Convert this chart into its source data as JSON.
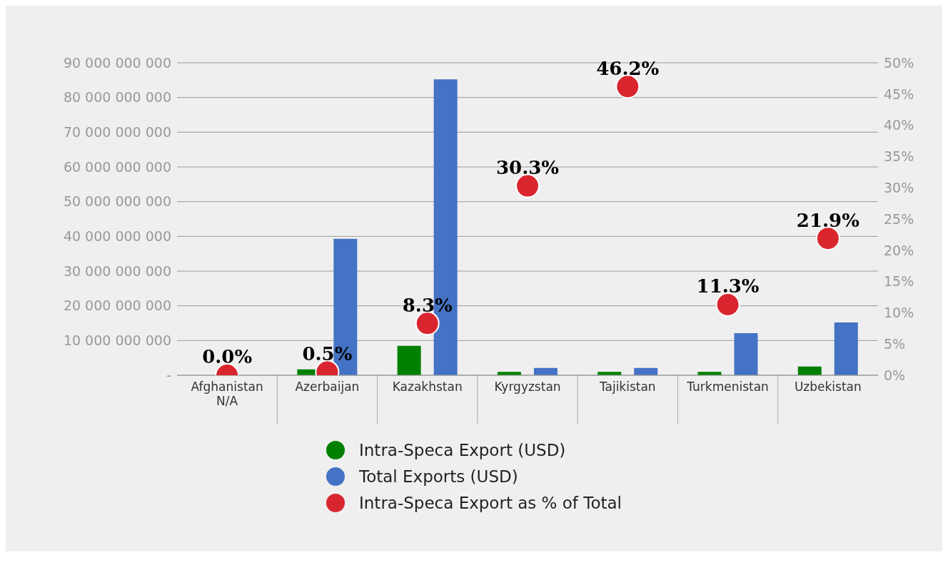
{
  "chart_data": {
    "type": "bar",
    "categories": [
      "Afghanistan\nN/A",
      "Azerbaijan",
      "Kazakhstan",
      "Kyrgyzstan",
      "Tajikistan",
      "Turkmenistan",
      "Uzbekistan"
    ],
    "series": [
      {
        "name": "Intra-Speca Export (USD)",
        "color": "#008000",
        "values": [
          null,
          1700000000,
          8500000000,
          1000000000,
          1000000000,
          1000000000,
          2500000000
        ]
      },
      {
        "name": "Total Exports (USD)",
        "color": "#4472c4",
        "values": [
          null,
          39300000000,
          85200000000,
          2100000000,
          2100000000,
          12100000000,
          15200000000
        ]
      },
      {
        "name": "Intra-Speca Export as % of Total",
        "type": "scatter",
        "axis": "y2",
        "color": "#d9262e",
        "values": [
          0.0,
          0.5,
          8.3,
          30.3,
          46.2,
          11.3,
          21.9
        ]
      }
    ],
    "ylim": [
      0,
      90000000000
    ],
    "yticks": [
      {
        "value": 0,
        "label": "-"
      },
      {
        "value": 10000000000,
        "label": "10 000 000 000"
      },
      {
        "value": 20000000000,
        "label": "20 000 000 000"
      },
      {
        "value": 30000000000,
        "label": "30 000 000 000"
      },
      {
        "value": 40000000000,
        "label": "40 000 000 000"
      },
      {
        "value": 50000000000,
        "label": "50 000 000 000"
      },
      {
        "value": 60000000000,
        "label": "60 000 000 000"
      },
      {
        "value": 70000000000,
        "label": "70 000 000 000"
      },
      {
        "value": 80000000000,
        "label": "80 000 000 000"
      },
      {
        "value": 90000000000,
        "label": "90 000 000 000"
      }
    ],
    "y2lim": [
      0,
      50
    ],
    "y2ticks": [
      {
        "value": 0,
        "label": "0%"
      },
      {
        "value": 5,
        "label": "5%"
      },
      {
        "value": 10,
        "label": "10%"
      },
      {
        "value": 15,
        "label": "15%"
      },
      {
        "value": 20,
        "label": "20%"
      },
      {
        "value": 25,
        "label": "25%"
      },
      {
        "value": 30,
        "label": "30%"
      },
      {
        "value": 35,
        "label": "35%"
      },
      {
        "value": 40,
        "label": "40%"
      },
      {
        "value": 45,
        "label": "45%"
      },
      {
        "value": 50,
        "label": "50%"
      }
    ],
    "value_labels": [
      "0.0%",
      "0.5%",
      "8.3%",
      "30.3%",
      "46.2%",
      "11.3%",
      "21.9%"
    ],
    "grid": "y",
    "legend": "bottom",
    "marker": "circle"
  }
}
